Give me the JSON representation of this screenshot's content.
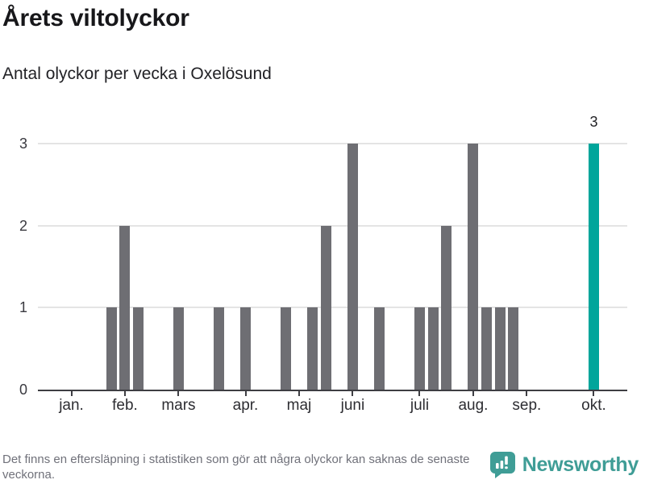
{
  "header": {
    "title": "Årets viltolyckor",
    "subtitle": "Antal olyckor per vecka i Oxelösund"
  },
  "chart_data": {
    "type": "bar",
    "title": "Årets viltolyckor",
    "subtitle": "Antal olyckor per vecka i Oxelösund",
    "x_unit": "vecka (week of year)",
    "ylabel": "Antal olyckor",
    "ylim": [
      0,
      3
    ],
    "y_ticks": [
      "0",
      "1",
      "2",
      "3"
    ],
    "grid": true,
    "values_by_week": [
      0,
      0,
      0,
      0,
      0,
      1,
      2,
      1,
      0,
      0,
      1,
      0,
      0,
      1,
      0,
      1,
      0,
      0,
      1,
      0,
      1,
      2,
      0,
      3,
      0,
      1,
      0,
      0,
      1,
      1,
      2,
      0,
      3,
      1,
      1,
      1,
      0,
      0,
      0,
      0,
      0,
      3,
      0,
      0
    ],
    "highlight_week_index": 41,
    "highlight_value_label": "3",
    "month_ticks": [
      {
        "label": "jan.",
        "week": 3
      },
      {
        "label": "feb.",
        "week": 7
      },
      {
        "label": "mars",
        "week": 11
      },
      {
        "label": "apr.",
        "week": 16
      },
      {
        "label": "maj",
        "week": 20
      },
      {
        "label": "juni",
        "week": 24
      },
      {
        "label": "juli",
        "week": 29
      },
      {
        "label": "aug.",
        "week": 33
      },
      {
        "label": "sep.",
        "week": 37
      },
      {
        "label": "okt.",
        "week": 42
      }
    ],
    "legend_position": "none",
    "colors": {
      "bar": "#6e6e73",
      "highlight": "#00a59b",
      "gridline": "#e4e4e4",
      "axis": "#3e3e43"
    }
  },
  "footer": {
    "note": "Det finns en eftersläpning i statistiken som gör att några olyckor kan saknas de senaste veckorna.",
    "brand": "Newsworthy",
    "brand_color": "#3f9d96"
  }
}
